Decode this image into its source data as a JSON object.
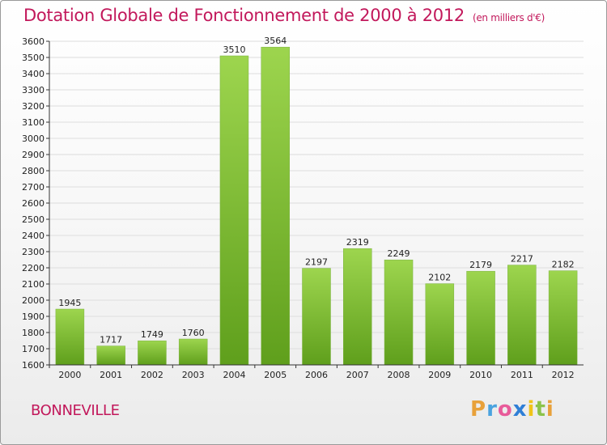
{
  "header": {
    "title": "Dotation Globale de Fonctionnement de 2000 à 2012",
    "unit": "(en milliers d'€)"
  },
  "footer": {
    "commune": "BONNEVILLE",
    "logo": [
      "P",
      "r",
      "o",
      "x",
      "i",
      "t",
      "i"
    ],
    "logo_colors": [
      "#e8a13a",
      "#4aa3df",
      "#e85b9a",
      "#2f7fd6",
      "#f0c419",
      "#8bc34a",
      "#e8a13a"
    ]
  },
  "chart_data": {
    "type": "bar",
    "title": "Dotation Globale de Fonctionnement de 2000 à 2012",
    "subtitle": "(en milliers d'€)",
    "categories": [
      "2000",
      "2001",
      "2002",
      "2003",
      "2004",
      "2005",
      "2006",
      "2007",
      "2008",
      "2009",
      "2010",
      "2011",
      "2012"
    ],
    "values": [
      1945,
      1717,
      1749,
      1760,
      3510,
      3564,
      2197,
      2319,
      2249,
      2102,
      2179,
      2217,
      2182
    ],
    "ylim": [
      1600,
      3600
    ],
    "ytick_step": 100,
    "grid": true,
    "colors": {
      "bar_top": "#9dd54e",
      "bar_bottom": "#5f9f1c",
      "axis": "#333333",
      "grid": "#dddddd"
    }
  }
}
